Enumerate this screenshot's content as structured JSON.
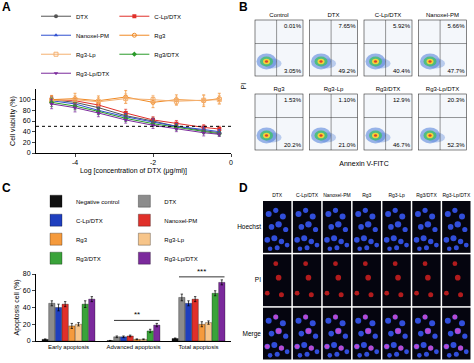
{
  "chart_data": [
    {
      "panel": "A",
      "type": "line",
      "x_label": "Log [concentration of DTX (μg/ml)]",
      "y_label": "Cell viability (%)",
      "x": [
        -4.6,
        -4.0,
        -3.4,
        -2.7,
        -2.0,
        -1.4,
        -0.7,
        -0.3
      ],
      "xlim": [
        -5,
        0
      ],
      "xticks": [
        -4,
        -2,
        0
      ],
      "ylim": [
        0,
        120
      ],
      "yticks": [
        0,
        20,
        40,
        60,
        80,
        100
      ],
      "grid": false,
      "legend": "top",
      "hline": 50,
      "series": [
        {
          "name": "DTX",
          "color": "#555555",
          "marker": "circle",
          "values": [
            100,
            95,
            85,
            70,
            60,
            50,
            42,
            38
          ],
          "errors": [
            6,
            7,
            6,
            8,
            6,
            5,
            5,
            4
          ]
        },
        {
          "name": "C-Lp/DTX",
          "color": "#e0302a",
          "marker": "square",
          "values": [
            100,
            98,
            90,
            75,
            62,
            55,
            48,
            45
          ],
          "errors": [
            7,
            6,
            8,
            7,
            6,
            6,
            5,
            5
          ]
        },
        {
          "name": "Nanoxel-PM",
          "color": "#2f4fd0",
          "marker": "triangle-up",
          "values": [
            98,
            92,
            80,
            68,
            58,
            50,
            44,
            40
          ],
          "errors": [
            6,
            8,
            7,
            6,
            6,
            5,
            5,
            4
          ]
        },
        {
          "name": "Rg3",
          "color": "#f08a24",
          "marker": "circle-open",
          "values": [
            100,
            102,
            98,
            105,
            95,
            100,
            98,
            102
          ],
          "errors": [
            8,
            10,
            9,
            12,
            10,
            9,
            11,
            10
          ]
        },
        {
          "name": "Rg3-Lp",
          "color": "#f4b070",
          "marker": "square-open",
          "values": [
            98,
            100,
            96,
            102,
            100,
            97,
            99,
            100
          ],
          "errors": [
            7,
            8,
            8,
            9,
            8,
            8,
            9,
            8
          ]
        },
        {
          "name": "Rg3/DTX",
          "color": "#2a9a2a",
          "marker": "diamond",
          "values": [
            95,
            88,
            78,
            65,
            55,
            48,
            40,
            36
          ],
          "errors": [
            8,
            7,
            6,
            6,
            5,
            5,
            4,
            4
          ]
        },
        {
          "name": "Rg3-Lp/DTX",
          "color": "#7b2a9c",
          "marker": "triangle-down",
          "values": [
            92,
            85,
            75,
            62,
            52,
            45,
            38,
            35
          ],
          "errors": [
            9,
            8,
            7,
            6,
            6,
            5,
            6,
            4
          ]
        }
      ]
    },
    {
      "panel": "C",
      "type": "bar",
      "y_label": "Apoptosis cell (%)",
      "categories": [
        "Early apoptosis",
        "Advanced apoptosis",
        "Total apoptosis"
      ],
      "ylim": [
        0,
        80
      ],
      "yticks": [
        0,
        20,
        40,
        60,
        80
      ],
      "grid": false,
      "legend": "top",
      "significance": [
        {
          "category": "Advanced apoptosis",
          "label": "**"
        },
        {
          "category": "Total apoptosis",
          "label": "***"
        }
      ],
      "series": [
        {
          "name": "Negative control",
          "color": "#111111",
          "values": [
            2,
            0.5,
            3
          ],
          "errors": [
            0.5,
            0.2,
            0.6
          ]
        },
        {
          "name": "DTX",
          "color": "#8c8c8c",
          "values": [
            45,
            5,
            52
          ],
          "errors": [
            3,
            1,
            4
          ]
        },
        {
          "name": "C-Lp/DTX",
          "color": "#1f3fbf",
          "values": [
            40,
            5,
            45
          ],
          "errors": [
            4,
            1,
            3
          ]
        },
        {
          "name": "Nanoxel-PM",
          "color": "#e0302a",
          "values": [
            44,
            6,
            50
          ],
          "errors": [
            3,
            1,
            3
          ]
        },
        {
          "name": "Rg3",
          "color": "#f59a3c",
          "values": [
            18,
            2,
            20
          ],
          "errors": [
            3,
            0.5,
            3
          ]
        },
        {
          "name": "Rg3-Lp",
          "color": "#f7c58a",
          "values": [
            20,
            2,
            22
          ],
          "errors": [
            2,
            0.5,
            2
          ]
        },
        {
          "name": "Rg3/DTX",
          "color": "#3aa33a",
          "values": [
            44,
            12,
            57
          ],
          "errors": [
            4,
            2,
            3
          ]
        },
        {
          "name": "Rg3-Lp/DTX",
          "color": "#7b2a9c",
          "values": [
            50,
            19,
            70
          ],
          "errors": [
            3,
            2,
            3
          ]
        }
      ]
    }
  ],
  "flow_cytometry": {
    "panel": "B",
    "x_label": "Annexin V-FITC",
    "y_label": "PI",
    "plots": [
      {
        "title": "Control",
        "upper_right": "0.01%",
        "lower_right": "3.05%"
      },
      {
        "title": "DTX",
        "upper_right": "7.65%",
        "lower_right": "49.2%"
      },
      {
        "title": "C-Lp/DTX",
        "upper_right": "5.92%",
        "lower_right": "40.4%"
      },
      {
        "title": "Nanoxel-PM",
        "upper_right": "5.66%",
        "lower_right": "47.7%"
      },
      {
        "title": "Rg3",
        "upper_right": "1.53%",
        "lower_right": "20.2%"
      },
      {
        "title": "Rg3-Lp",
        "upper_right": "1.10%",
        "lower_right": "21.0%"
      },
      {
        "title": "Rg3/DTX",
        "upper_right": "12.9%",
        "lower_right": "46.7%"
      },
      {
        "title": "Rg3-Lp/DTX",
        "upper_right": "20.3%",
        "lower_right": "52.3%"
      }
    ]
  },
  "fluorescence": {
    "panel": "D",
    "columns": [
      "DTX",
      "C-Lp/DTX",
      "Nanoxel-PM",
      "Rg3",
      "Rg3-Lp",
      "Rg3/DTX",
      "Rg3-Lp/DTX"
    ],
    "rows": [
      "Hoechst",
      "PI",
      "Merge"
    ]
  }
}
